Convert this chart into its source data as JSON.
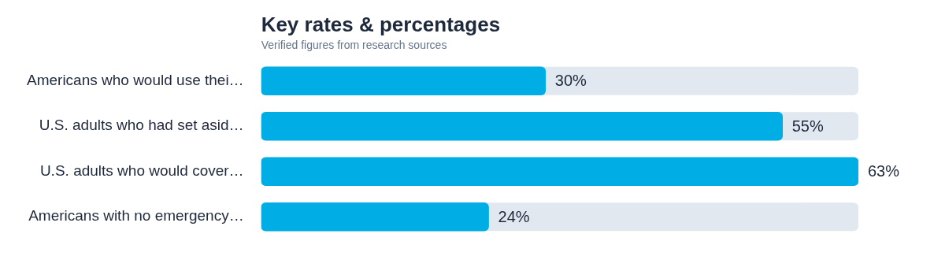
{
  "chart_data": {
    "type": "bar",
    "orientation": "horizontal",
    "title": "Key rates & percentages",
    "subtitle": "Verified figures from research sources",
    "categories": [
      "Americans who would use thei…",
      "U.S. adults who had set asid…",
      "U.S. adults who would cover…",
      "Americans with no emergency…"
    ],
    "values": [
      30,
      55,
      63,
      24
    ],
    "value_labels": [
      "30%",
      "55%",
      "63%",
      "24%"
    ],
    "color": "#00ade4",
    "xlim": [
      0,
      63
    ],
    "tick_labels": "y"
  }
}
